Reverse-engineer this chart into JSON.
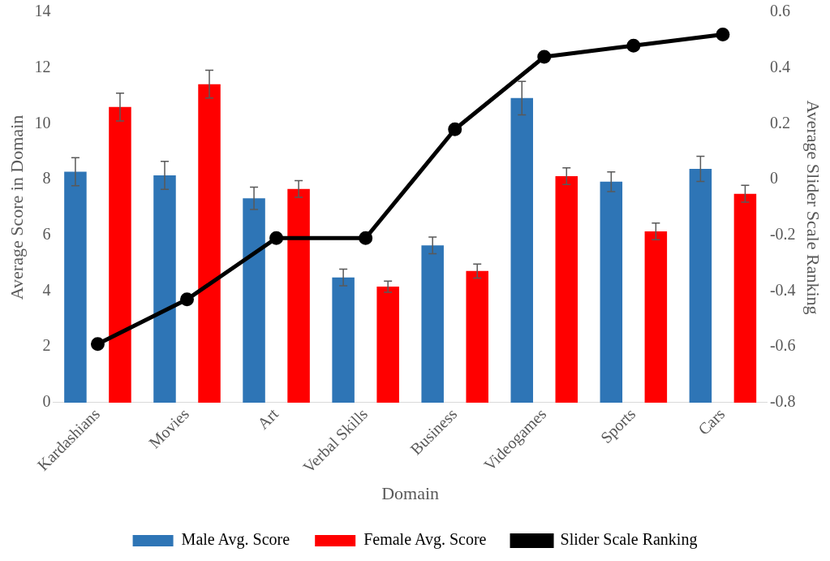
{
  "chart_data": {
    "type": "bar",
    "xlabel": "Domain",
    "ylabel": "Average Score in Domain",
    "y2label": "Average Slider Scale Ranking",
    "categories": [
      "Kardashians",
      "Movies",
      "Art",
      "Verbal Skills",
      "Business",
      "Videogames",
      "Sports",
      "Cars"
    ],
    "series": [
      {
        "name": "Male Avg. Score",
        "color": "#2e75b6",
        "values": [
          8.28,
          8.15,
          7.33,
          4.49,
          5.64,
          10.92,
          7.92,
          8.38
        ],
        "errors": [
          0.5,
          0.5,
          0.4,
          0.3,
          0.3,
          0.6,
          0.35,
          0.45
        ]
      },
      {
        "name": "Female Avg. Score",
        "color": "#ff0000",
        "values": [
          10.6,
          11.42,
          7.66,
          4.16,
          4.72,
          8.12,
          6.14,
          7.49
        ],
        "errors": [
          0.5,
          0.5,
          0.3,
          0.2,
          0.25,
          0.3,
          0.3,
          0.3
        ]
      },
      {
        "name": "Slider Scale Ranking",
        "type": "line",
        "axis": "y2",
        "color": "#000000",
        "values": [
          -0.59,
          -0.43,
          -0.21,
          -0.21,
          0.18,
          0.44,
          0.48,
          0.52
        ]
      }
    ],
    "ylim": [
      0,
      14
    ],
    "yticks": [
      0,
      2,
      4,
      6,
      8,
      10,
      12,
      14
    ],
    "y2lim": [
      -0.8,
      0.6
    ],
    "y2ticks": [
      -0.8,
      -0.6,
      -0.4,
      -0.2,
      0,
      0.2,
      0.4,
      0.6
    ],
    "grid": false,
    "legend": "bottom",
    "marker": "circle",
    "line_style": "solid"
  }
}
